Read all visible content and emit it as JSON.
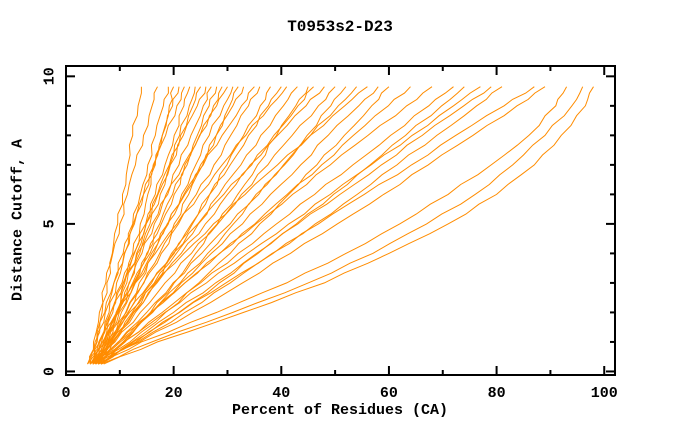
{
  "chart_data": {
    "type": "line",
    "title": "T0953s2-D23",
    "xlabel": "Percent of Residues (CA)",
    "ylabel": "Distance Cutoff, A",
    "xlim": [
      0,
      102
    ],
    "ylim": [
      -0.12,
      10.35
    ],
    "grid": false,
    "legend": null,
    "background": "#FFFFFF",
    "axis_color": "#000000",
    "text_color": "#000000",
    "line_color": "#FF8C00",
    "x_major_ticks": [
      0,
      20,
      40,
      60,
      80,
      100
    ],
    "x_tick_labels": [
      "0",
      "20",
      "40",
      "60",
      "80",
      "100"
    ],
    "x_minor_ticks": [
      10,
      30,
      50,
      70,
      90
    ],
    "y_major_ticks": [
      0,
      5,
      10
    ],
    "y_tick_labels": [
      "0",
      "5",
      "10"
    ],
    "y_minor_ticks": [
      1,
      2,
      3,
      4,
      6,
      7,
      8,
      9
    ],
    "y_levels": [
      0.25,
      1,
      2,
      3,
      4,
      5,
      6,
      7,
      8,
      9,
      9.65
    ],
    "series": [
      {
        "x": [
          5,
          5.7,
          6.7,
          7.6,
          8.6,
          9.6,
          10.5,
          11.5,
          12.4,
          13.4,
          14
        ]
      },
      {
        "x": [
          4.5,
          5.1,
          6.2,
          7.4,
          8.7,
          10,
          11.4,
          12.9,
          14.4,
          16,
          17
        ]
      },
      {
        "x": [
          5.5,
          6.6,
          8,
          9.4,
          10.9,
          12.4,
          13.8,
          15.2,
          16.6,
          18.1,
          19
        ]
      },
      {
        "x": [
          6,
          7.6,
          9.3,
          10.9,
          12.4,
          13.8,
          15.2,
          16.6,
          17.9,
          19.2,
          20
        ]
      },
      {
        "x": [
          4,
          5.4,
          7.2,
          8.9,
          10.8,
          12.7,
          14.4,
          16.2,
          17.9,
          19.8,
          21
        ]
      },
      {
        "x": [
          5,
          5.8,
          7.3,
          8.9,
          10.6,
          12.5,
          14.4,
          16.4,
          18.5,
          20.6,
          22
        ]
      },
      {
        "x": [
          6.5,
          7.8,
          9.6,
          11.3,
          13.1,
          14.9,
          16.6,
          18.4,
          20.1,
          21.9,
          23
        ]
      },
      {
        "x": [
          5,
          7.2,
          9.5,
          11.7,
          13.7,
          15.6,
          17.5,
          19.3,
          21.1,
          22.9,
          24
        ]
      },
      {
        "x": [
          4.5,
          6.1,
          8.3,
          10.4,
          12.7,
          14.9,
          17,
          19.2,
          21.3,
          23.6,
          25
        ]
      },
      {
        "x": [
          6,
          7,
          8.7,
          10.6,
          12.6,
          14.8,
          17.1,
          19.4,
          21.8,
          24.4,
          26
        ]
      },
      {
        "x": [
          5.5,
          7.2,
          9.5,
          11.8,
          14.1,
          16.4,
          18.6,
          21,
          23.2,
          25.5,
          27
        ]
      },
      {
        "x": [
          4,
          6.8,
          9.7,
          12.4,
          15,
          17.4,
          19.8,
          22.1,
          24.4,
          26.6,
          28
        ]
      },
      {
        "x": [
          6,
          7.8,
          10.3,
          12.7,
          15.2,
          17.7,
          20.1,
          22.5,
          24.9,
          27.4,
          29
        ]
      },
      {
        "x": [
          5,
          6.2,
          8.3,
          10.7,
          13.3,
          16,
          18.9,
          21.8,
          24.8,
          28,
          30
        ]
      },
      {
        "x": [
          6.5,
          8.5,
          11.1,
          13.6,
          16.3,
          19,
          21.5,
          24.1,
          26.6,
          29.3,
          31
        ]
      },
      {
        "x": [
          5,
          8.2,
          11.5,
          14.5,
          17.4,
          20.1,
          22.8,
          25.4,
          27.9,
          30.4,
          32
        ]
      },
      {
        "x": [
          4.5,
          6.8,
          9.8,
          12.8,
          15.9,
          18.9,
          21.9,
          25,
          27.9,
          31,
          33
        ]
      },
      {
        "x": [
          6,
          7.4,
          9.9,
          12.6,
          15.6,
          18.8,
          22.1,
          25.5,
          29,
          32.6,
          35
        ]
      },
      {
        "x": [
          5.5,
          7.9,
          11.2,
          14.4,
          17.7,
          20.9,
          24.2,
          27.5,
          30.6,
          33.9,
          36
        ]
      },
      {
        "x": [
          5,
          8.9,
          12.9,
          16.6,
          20.1,
          23.5,
          26.7,
          29.9,
          33,
          36.1,
          38
        ]
      },
      {
        "x": [
          6,
          8.7,
          12.3,
          15.9,
          19.6,
          23.3,
          26.7,
          30.5,
          33.9,
          37.6,
          40
        ]
      },
      {
        "x": [
          4.5,
          6.3,
          9.4,
          12.9,
          16.6,
          20.6,
          24.8,
          29,
          33.4,
          38,
          41
        ]
      },
      {
        "x": [
          5.5,
          8.5,
          12.5,
          16.4,
          20.5,
          24.6,
          28.4,
          32.5,
          36.2,
          40.4,
          43
        ]
      },
      {
        "x": [
          6.5,
          11,
          15.7,
          20.1,
          24.1,
          28.1,
          31.9,
          35.6,
          39.1,
          42.7,
          45
        ]
      },
      {
        "x": [
          5,
          8.3,
          12.6,
          16.9,
          21.4,
          25.9,
          30,
          34.5,
          38.6,
          43.1,
          46
        ]
      },
      {
        "x": [
          6,
          8,
          11.6,
          15.6,
          19.9,
          24.5,
          29.3,
          34.2,
          39.3,
          44.6,
          48
        ]
      },
      {
        "x": [
          5.5,
          9.1,
          13.8,
          18.4,
          23.3,
          28.2,
          32.6,
          37.5,
          42,
          46.9,
          50
        ]
      },
      {
        "x": [
          4.5,
          10.1,
          15.9,
          21.2,
          26.3,
          31.1,
          35.8,
          40.4,
          44.8,
          49.2,
          52
        ]
      },
      {
        "x": [
          6,
          9.8,
          15,
          19.9,
          25.2,
          30.5,
          35.3,
          40.6,
          45.4,
          50.6,
          54
        ]
      },
      {
        "x": [
          5,
          7.4,
          11.8,
          16.7,
          21.9,
          27.4,
          33.3,
          39.3,
          45.4,
          51.8,
          56
        ]
      },
      {
        "x": [
          6.5,
          10.6,
          16.1,
          21.4,
          27,
          32.8,
          38,
          43.6,
          48.7,
          54.4,
          58
        ]
      },
      {
        "x": [
          5.5,
          11.9,
          18.5,
          24.7,
          30.5,
          36,
          41.4,
          46.6,
          51.7,
          56.8,
          60
        ]
      },
      {
        "x": [
          5,
          9.7,
          16,
          22.1,
          28.5,
          35.1,
          41.1,
          47.5,
          53.4,
          59.9,
          64
        ]
      },
      {
        "x": [
          6,
          9.8,
          15.7,
          22.1,
          28.6,
          35.3,
          42.1,
          49.1,
          56.1,
          63.3,
          68
        ]
      },
      {
        "x": [
          5.5,
          10.8,
          17.9,
          25,
          32,
          39.1,
          46.2,
          53.3,
          60.3,
          67.4,
          72
        ]
      },
      {
        "x": [
          6,
          13,
          21,
          28.5,
          35.7,
          42.8,
          49.7,
          56.5,
          63.1,
          69.8,
          74
        ]
      },
      {
        "x": [
          5,
          10.7,
          18.4,
          26.1,
          33.7,
          41.4,
          49.1,
          56.7,
          64.3,
          72,
          77
        ]
      },
      {
        "x": [
          6.5,
          12.3,
          20,
          27.8,
          35.4,
          43.1,
          50.9,
          58.6,
          66.2,
          73.9,
          79
        ]
      },
      {
        "x": [
          5.5,
          13.3,
          22.1,
          30.5,
          38.5,
          46.3,
          54.1,
          61.5,
          68.9,
          76.3,
          81
        ]
      },
      {
        "x": [
          6,
          12.5,
          21.1,
          29.7,
          38.3,
          46.9,
          55.4,
          64.2,
          72.4,
          81.4,
          87
        ]
      },
      {
        "x": [
          5,
          13.7,
          23.5,
          32.8,
          41.7,
          50.4,
          59,
          67.3,
          75.6,
          83.8,
          89
        ]
      },
      {
        "x": [
          6,
          14,
          28,
          41,
          52,
          62,
          71,
          79,
          86,
          91,
          93
        ]
      },
      {
        "x": [
          6.5,
          16,
          31,
          45,
          57,
          67,
          76,
          83,
          89,
          94,
          96
        ]
      },
      {
        "x": [
          7,
          17,
          33,
          48,
          60,
          71,
          80,
          87,
          92,
          96.5,
          98
        ]
      }
    ]
  }
}
